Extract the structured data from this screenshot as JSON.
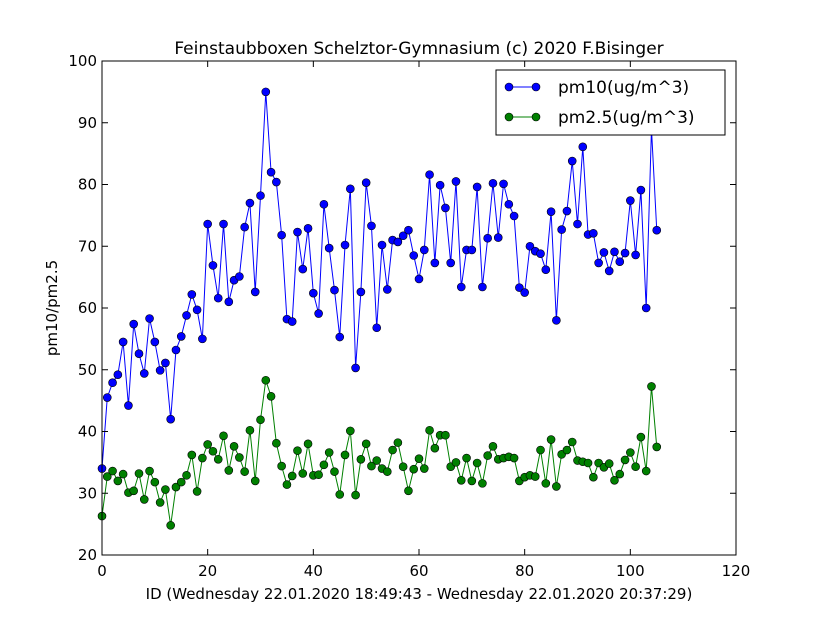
{
  "chart_data": {
    "type": "line",
    "title": "Feinstaubboxen Schelztor-Gymnasium (c) 2020 F.Bisinger",
    "xlabel": "ID (Wednesday 22.01.2020 18:49:43 - Wednesday 22.01.2020 20:37:29)",
    "ylabel": "pm10/pm2.5",
    "xlim": [
      0,
      120
    ],
    "ylim": [
      20,
      100
    ],
    "xticks": [
      0,
      20,
      40,
      60,
      80,
      100,
      120
    ],
    "yticks": [
      20,
      30,
      40,
      50,
      60,
      70,
      80,
      90,
      100
    ],
    "grid": false,
    "legend_position": "top-right",
    "series": [
      {
        "name": "pm10(ug/m^3)",
        "color": "#0000ff",
        "values": [
          34.0,
          45.5,
          47.9,
          49.2,
          54.5,
          44.2,
          57.4,
          52.6,
          49.4,
          58.3,
          54.5,
          49.9,
          51.1,
          42.0,
          53.2,
          55.4,
          58.8,
          62.2,
          59.7,
          55.0,
          73.6,
          66.9,
          61.6,
          73.6,
          61.0,
          64.5,
          65.1,
          73.1,
          77.0,
          62.6,
          78.2,
          95.0,
          82.0,
          80.4,
          71.8,
          58.2,
          57.8,
          72.3,
          66.3,
          72.9,
          62.4,
          59.1,
          76.8,
          69.7,
          62.9,
          55.3,
          70.2,
          79.3,
          50.3,
          62.6,
          80.3,
          73.3,
          56.8,
          70.2,
          63.0,
          71.0,
          70.7,
          71.7,
          72.6,
          68.5,
          64.7,
          69.4,
          81.6,
          67.3,
          79.9,
          76.2,
          67.3,
          80.5,
          63.4,
          69.4,
          69.4,
          79.6,
          63.4,
          71.3,
          80.2,
          71.4,
          80.1,
          76.8,
          74.9,
          63.3,
          62.5,
          70.0,
          69.2,
          68.8,
          66.2,
          75.6,
          58.0,
          72.7,
          75.7,
          83.8,
          73.6,
          86.1,
          71.9,
          72.1,
          67.3,
          69.0,
          66.0,
          69.1,
          67.5,
          68.9,
          77.4,
          68.6,
          79.1,
          60.0,
          89.0,
          72.6
        ]
      },
      {
        "name": "pm2.5(ug/m^3)",
        "color": "#008000",
        "values": [
          26.3,
          32.7,
          33.6,
          32.0,
          33.1,
          30.1,
          30.4,
          33.2,
          29.0,
          33.6,
          31.8,
          28.5,
          30.6,
          24.8,
          31.0,
          31.8,
          32.9,
          36.2,
          30.3,
          35.7,
          37.9,
          36.8,
          35.5,
          39.3,
          33.7,
          37.6,
          35.8,
          33.5,
          40.2,
          32.0,
          41.9,
          48.3,
          45.7,
          38.1,
          34.4,
          31.4,
          32.8,
          36.9,
          33.2,
          38.0,
          32.9,
          33.0,
          34.6,
          36.6,
          33.5,
          29.8,
          36.2,
          40.1,
          29.7,
          35.5,
          38.0,
          34.4,
          35.3,
          34.0,
          33.5,
          37.0,
          38.2,
          34.3,
          30.4,
          33.9,
          35.6,
          34.0,
          40.2,
          37.3,
          39.4,
          39.4,
          34.3,
          35.0,
          32.1,
          35.7,
          32.0,
          34.9,
          31.6,
          36.1,
          37.6,
          35.5,
          35.7,
          35.9,
          35.7,
          32.0,
          32.6,
          32.9,
          32.7,
          37.0,
          31.6,
          38.7,
          31.1,
          36.3,
          37.0,
          38.3,
          35.3,
          35.1,
          34.9,
          32.6,
          34.9,
          34.2,
          34.8,
          32.1,
          33.1,
          35.4,
          36.6,
          34.3,
          39.1,
          33.6,
          47.3,
          37.5
        ]
      }
    ]
  }
}
